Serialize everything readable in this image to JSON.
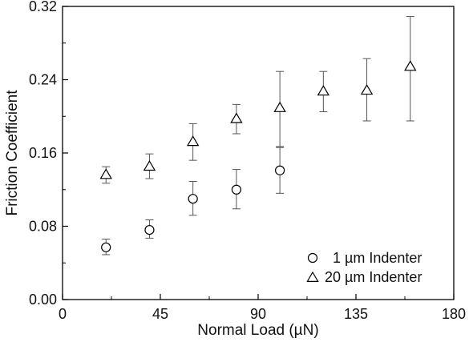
{
  "chart_data": {
    "type": "scatter",
    "title": "",
    "xlabel": "Normal Load (µN)",
    "ylabel": "Friction Coefficient",
    "xlim": [
      0,
      180
    ],
    "ylim": [
      0.0,
      0.32
    ],
    "xticks": [
      0,
      45,
      90,
      135,
      180
    ],
    "yticks": [
      0.0,
      0.08,
      0.16,
      0.24,
      0.32
    ],
    "xtick_labels": [
      "0",
      "45",
      "90",
      "135",
      "180"
    ],
    "ytick_labels": [
      "0.00",
      "0.08",
      "0.16",
      "0.24",
      "0.32"
    ],
    "grid": false,
    "legend_position": "bottom-right",
    "series": [
      {
        "name": "1 µm Indenter",
        "marker": "circle",
        "x": [
          20,
          40,
          60,
          80,
          100
        ],
        "y": [
          0.057,
          0.076,
          0.11,
          0.12,
          0.141
        ],
        "err_low": [
          0.049,
          0.067,
          0.092,
          0.099,
          0.116
        ],
        "err_high": [
          0.066,
          0.087,
          0.129,
          0.142,
          0.166
        ]
      },
      {
        "name": "20 µm Indenter",
        "marker": "triangle",
        "x": [
          20,
          40,
          60,
          80,
          100,
          120,
          140,
          160
        ],
        "y": [
          0.136,
          0.145,
          0.172,
          0.197,
          0.209,
          0.227,
          0.228,
          0.254
        ],
        "err_low": [
          0.127,
          0.132,
          0.152,
          0.181,
          0.167,
          0.205,
          0.195,
          0.195
        ],
        "err_high": [
          0.145,
          0.159,
          0.192,
          0.213,
          0.249,
          0.249,
          0.263,
          0.309
        ]
      }
    ]
  }
}
